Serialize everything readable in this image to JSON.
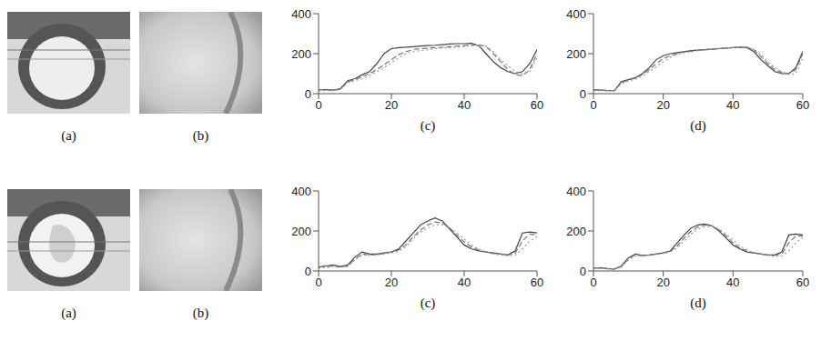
{
  "image_labels": [
    [
      "(a)",
      "(b)"
    ],
    [
      "(a)",
      "(b)"
    ]
  ],
  "chart_data": [
    {
      "type": "line",
      "x_label": "(c)",
      "x": [
        0,
        2,
        4,
        6,
        8,
        10,
        12,
        14,
        16,
        18,
        20,
        22,
        24,
        26,
        28,
        30,
        32,
        34,
        36,
        38,
        40,
        42,
        44,
        46,
        48,
        50,
        52,
        54,
        56,
        58,
        60
      ],
      "xlim": [
        0,
        60
      ],
      "xticks": [
        0,
        20,
        40,
        60
      ],
      "ylim": [
        0,
        400
      ],
      "yticks": [
        0,
        200,
        400
      ],
      "grid": false,
      "series": [
        {
          "color": "#444444",
          "line_style": "solid",
          "values": [
            20,
            20,
            18,
            25,
            65,
            75,
            95,
            110,
            150,
            200,
            225,
            230,
            232,
            235,
            238,
            240,
            242,
            245,
            248,
            250,
            250,
            252,
            240,
            200,
            160,
            130,
            110,
            100,
            110,
            150,
            220
          ]
        },
        {
          "color": "#777777",
          "line_style": "dashed",
          "values": [
            20,
            20,
            18,
            22,
            60,
            70,
            85,
            100,
            120,
            145,
            170,
            195,
            210,
            220,
            225,
            228,
            230,
            232,
            235,
            238,
            240,
            242,
            245,
            235,
            200,
            160,
            120,
            95,
            90,
            120,
            200
          ]
        },
        {
          "color": "#999999",
          "line_style": "dotted",
          "values": [
            15,
            15,
            15,
            20,
            55,
            65,
            75,
            90,
            110,
            130,
            155,
            180,
            200,
            210,
            215,
            220,
            225,
            228,
            230,
            232,
            235,
            240,
            242,
            238,
            210,
            170,
            140,
            110,
            100,
            110,
            180
          ]
        }
      ]
    },
    {
      "type": "line",
      "x_label": "(d)",
      "x": [
        0,
        2,
        4,
        6,
        8,
        10,
        12,
        14,
        16,
        18,
        20,
        22,
        24,
        26,
        28,
        30,
        32,
        34,
        36,
        38,
        40,
        42,
        44,
        46,
        48,
        50,
        52,
        54,
        56,
        58,
        60
      ],
      "xlim": [
        0,
        60
      ],
      "xticks": [
        0,
        20,
        40,
        60
      ],
      "ylim": [
        0,
        400
      ],
      "yticks": [
        0,
        200,
        400
      ],
      "grid": false,
      "series": [
        {
          "color": "#444444",
          "line_style": "solid",
          "values": [
            20,
            18,
            15,
            15,
            60,
            70,
            80,
            100,
            130,
            170,
            190,
            200,
            205,
            210,
            215,
            218,
            220,
            222,
            225,
            228,
            230,
            232,
            230,
            210,
            170,
            140,
            110,
            100,
            100,
            130,
            210
          ]
        },
        {
          "color": "#777777",
          "line_style": "dashed",
          "values": [
            20,
            18,
            15,
            15,
            55,
            68,
            78,
            95,
            120,
            150,
            175,
            190,
            200,
            208,
            212,
            216,
            220,
            224,
            226,
            228,
            230,
            232,
            232,
            220,
            185,
            150,
            120,
            105,
            100,
            120,
            200
          ]
        },
        {
          "color": "#999999",
          "line_style": "dotted",
          "values": [
            15,
            15,
            15,
            15,
            50,
            62,
            72,
            88,
            110,
            135,
            160,
            180,
            195,
            205,
            210,
            215,
            218,
            222,
            225,
            228,
            230,
            230,
            228,
            222,
            195,
            160,
            130,
            110,
            95,
            100,
            180
          ]
        }
      ]
    },
    {
      "type": "line",
      "x_label": "(c)",
      "x": [
        0,
        2,
        4,
        6,
        8,
        10,
        12,
        14,
        16,
        18,
        20,
        22,
        24,
        26,
        28,
        30,
        32,
        34,
        36,
        38,
        40,
        42,
        44,
        46,
        48,
        50,
        52,
        54,
        56,
        58,
        60
      ],
      "xlim": [
        0,
        60
      ],
      "xticks": [
        0,
        20,
        40,
        60
      ],
      "ylim": [
        0,
        400
      ],
      "yticks": [
        0,
        200,
        400
      ],
      "grid": false,
      "series": [
        {
          "color": "#444444",
          "line_style": "solid",
          "values": [
            20,
            25,
            30,
            22,
            30,
            70,
            95,
            85,
            85,
            90,
            95,
            110,
            150,
            190,
            230,
            250,
            265,
            250,
            210,
            170,
            130,
            110,
            100,
            95,
            90,
            85,
            80,
            100,
            190,
            195,
            190
          ]
        },
        {
          "color": "#777777",
          "line_style": "dashed",
          "values": [
            20,
            22,
            25,
            20,
            25,
            60,
            85,
            80,
            82,
            88,
            95,
            105,
            130,
            170,
            205,
            230,
            245,
            240,
            215,
            180,
            145,
            120,
            105,
            95,
            88,
            85,
            80,
            90,
            150,
            185,
            180
          ]
        },
        {
          "color": "#999999",
          "line_style": "dotted",
          "values": [
            15,
            18,
            22,
            18,
            22,
            55,
            80,
            78,
            80,
            85,
            90,
            100,
            120,
            160,
            195,
            215,
            230,
            230,
            215,
            190,
            160,
            130,
            110,
            95,
            85,
            80,
            75,
            80,
            110,
            150,
            170
          ]
        }
      ]
    },
    {
      "type": "line",
      "x_label": "(d)",
      "x": [
        0,
        2,
        4,
        6,
        8,
        10,
        12,
        14,
        16,
        18,
        20,
        22,
        24,
        26,
        28,
        30,
        32,
        34,
        36,
        38,
        40,
        42,
        44,
        46,
        48,
        50,
        52,
        54,
        56,
        58,
        60
      ],
      "xlim": [
        0,
        60
      ],
      "xticks": [
        0,
        20,
        40,
        60
      ],
      "ylim": [
        0,
        400
      ],
      "yticks": [
        0,
        200,
        400
      ],
      "grid": false,
      "series": [
        {
          "color": "#444444",
          "line_style": "solid",
          "values": [
            15,
            15,
            12,
            10,
            25,
            65,
            85,
            78,
            80,
            85,
            90,
            100,
            140,
            180,
            215,
            230,
            235,
            225,
            200,
            165,
            130,
            110,
            95,
            90,
            85,
            80,
            80,
            95,
            180,
            185,
            180
          ]
        },
        {
          "color": "#777777",
          "line_style": "dashed",
          "values": [
            15,
            15,
            12,
            10,
            22,
            60,
            80,
            78,
            80,
            85,
            90,
            98,
            125,
            165,
            200,
            220,
            230,
            225,
            205,
            175,
            140,
            115,
            100,
            90,
            85,
            80,
            78,
            85,
            140,
            175,
            175
          ]
        },
        {
          "color": "#999999",
          "line_style": "dotted",
          "values": [
            12,
            12,
            10,
            10,
            20,
            55,
            75,
            75,
            78,
            82,
            88,
            95,
            115,
            150,
            185,
            210,
            222,
            222,
            210,
            185,
            155,
            125,
            105,
            92,
            85,
            78,
            72,
            75,
            100,
            140,
            170
          ]
        }
      ]
    }
  ]
}
